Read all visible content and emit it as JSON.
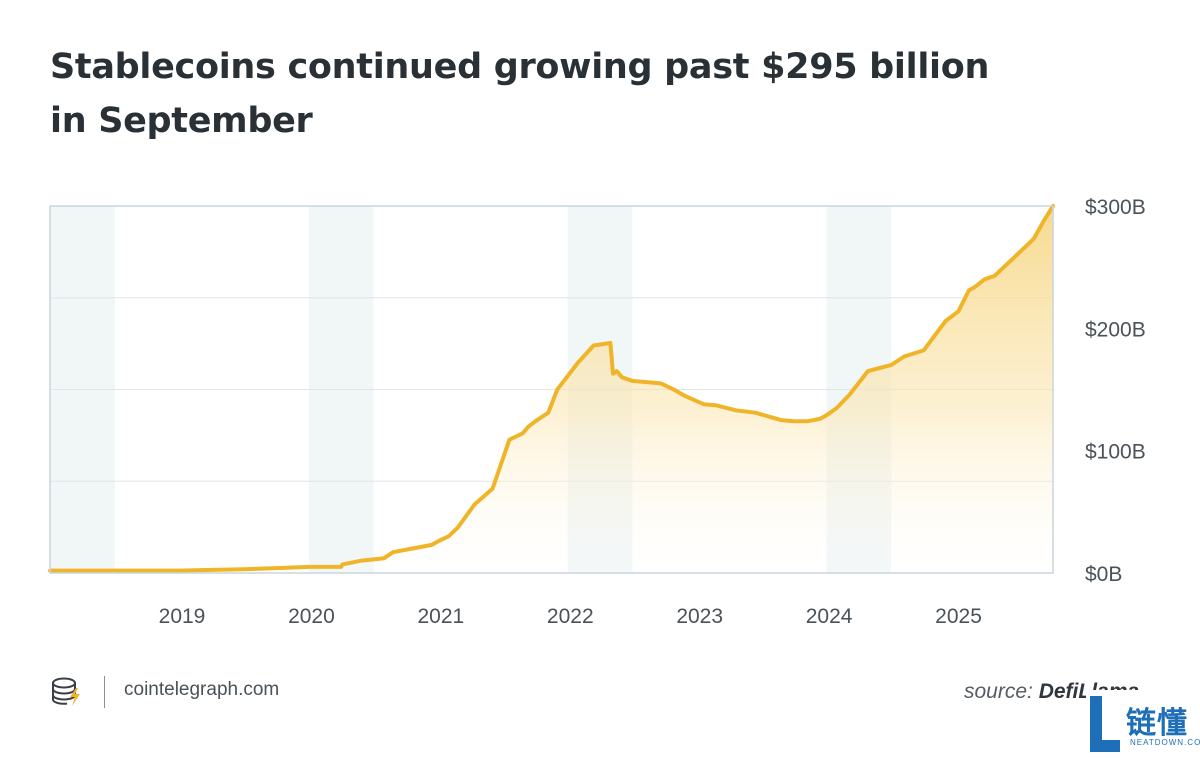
{
  "title_lines": [
    "Stablecoins continued growing past $295 billion",
    "in September"
  ],
  "footer": {
    "site": "cointelegraph.com",
    "source_prefix": "source: ",
    "source_name": "DefiLlama"
  },
  "watermark": {
    "text": "链懂",
    "sub": "NEATDOWN.COM"
  },
  "colors": {
    "line": "#f0b429",
    "fill_top": "#f7d88a",
    "band": "#f1f6f7",
    "grid": "#dde6ea",
    "axis_text": "#4a5258",
    "frame": "#c9d6dc",
    "watermark": "#1f6fb8"
  },
  "chart_data": {
    "type": "area",
    "title": "Stablecoins continued growing past $295 billion in September",
    "xlabel": "",
    "ylabel": "",
    "x_ticks": [
      "2019",
      "2020",
      "2021",
      "2022",
      "2023",
      "2024",
      "2025"
    ],
    "y_ticks": [
      "$0B",
      "$100B",
      "$200B",
      "$300B"
    ],
    "ylim": [
      0,
      300
    ],
    "xlim": [
      2018.0,
      2025.75
    ],
    "grid": true,
    "x": [
      2018.0,
      2018.5,
      2019.0,
      2019.25,
      2019.5,
      2019.75,
      2020.0,
      2020.2,
      2020.25,
      2020.26,
      2020.4,
      2020.58,
      2020.65,
      2020.8,
      2020.95,
      2021.0,
      2021.08,
      2021.15,
      2021.28,
      2021.42,
      2021.55,
      2021.65,
      2021.7,
      2021.75,
      2021.85,
      2021.92,
      2022.08,
      2022.2,
      2022.33,
      2022.35,
      2022.38,
      2022.42,
      2022.5,
      2022.72,
      2022.82,
      2022.9,
      2023.05,
      2023.15,
      2023.3,
      2023.45,
      2023.55,
      2023.62,
      2023.65,
      2023.75,
      2023.85,
      2023.95,
      2024.0,
      2024.08,
      2024.18,
      2024.32,
      2024.5,
      2024.6,
      2024.75,
      2024.92,
      2025.02,
      2025.1,
      2025.15,
      2025.22,
      2025.3,
      2025.38,
      2025.45,
      2025.52,
      2025.6,
      2025.68,
      2025.75
    ],
    "y": [
      2,
      2,
      2,
      2.5,
      3,
      4,
      5,
      5,
      5,
      7,
      10,
      12,
      17,
      20,
      23,
      26,
      30,
      37,
      56,
      69,
      109,
      114,
      120,
      124,
      131,
      150,
      172,
      186,
      188,
      163,
      165,
      160,
      157,
      155,
      150,
      145,
      138,
      137,
      133,
      131,
      128,
      126,
      125,
      124,
      124,
      126,
      129,
      135,
      146,
      165,
      170,
      177,
      182,
      206,
      214,
      231,
      234,
      240,
      243,
      251,
      258,
      265,
      273,
      288,
      300
    ]
  }
}
